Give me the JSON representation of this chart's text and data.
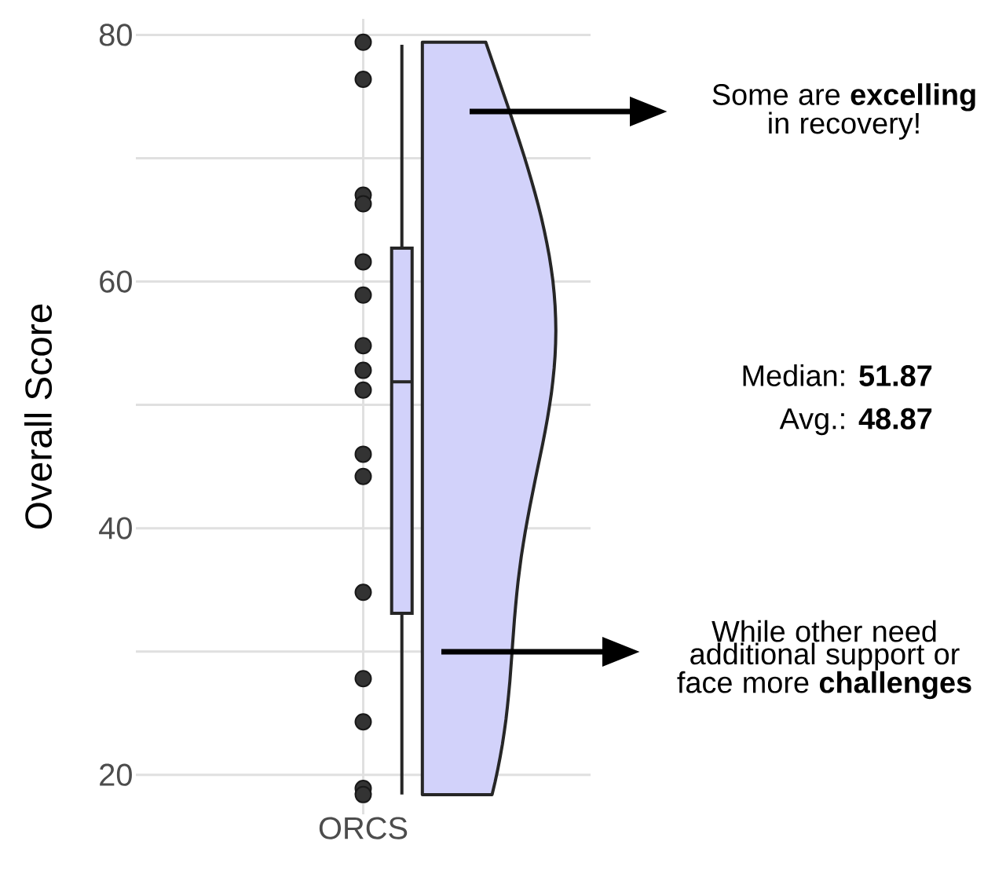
{
  "chart_data": {
    "type": "box",
    "ylabel": "Overall Score",
    "categories": [
      "ORCS"
    ],
    "ylim": [
      16.8,
      81.3
    ],
    "yticks": [
      20,
      {
        "value": 30,
        "label": null
      },
      40,
      {
        "value": 50,
        "label": null
      },
      60,
      {
        "value": 70,
        "label": null
      },
      80
    ],
    "grid": true,
    "color": "#d2d2fa",
    "boxes": [
      {
        "low": 18.4,
        "q1": 33.1,
        "median": 51.87,
        "q3": 62.7,
        "high": 79.2
      }
    ],
    "series": [
      {
        "type": "scatter",
        "x": [
          "ORCS",
          "ORCS",
          "ORCS",
          "ORCS",
          "ORCS",
          "ORCS",
          "ORCS",
          "ORCS",
          "ORCS",
          "ORCS",
          "ORCS",
          "ORCS",
          "ORCS",
          "ORCS",
          "ORCS",
          "ORCS"
        ],
        "values": [
          79.4,
          76.4,
          67.0,
          66.3,
          61.6,
          58.9,
          54.8,
          52.8,
          51.2,
          46.0,
          44.2,
          34.8,
          27.8,
          24.3,
          18.9,
          18.4
        ],
        "color": "#333333",
        "marker": "circle"
      }
    ],
    "annotations": [
      "Some are **excelling** in recovery!",
      "Median: **51.87**",
      "Avg.: **48.87**",
      "While other need additional support or face more **challenges**"
    ]
  }
}
